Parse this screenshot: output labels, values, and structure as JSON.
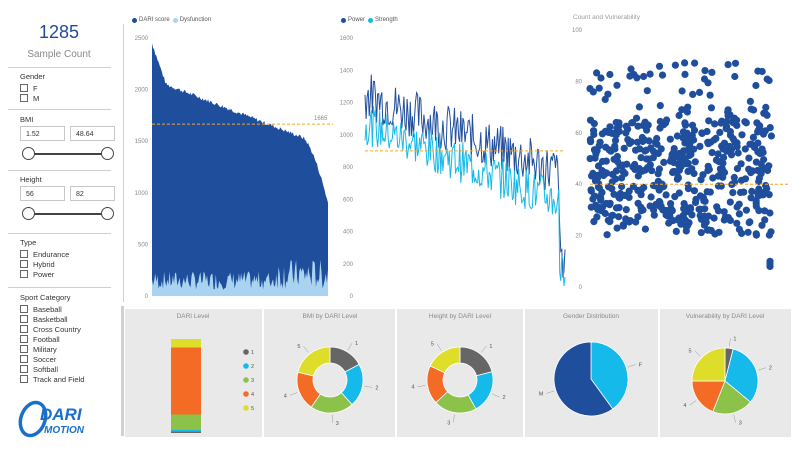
{
  "summary": {
    "count": "1285",
    "count_label": "Sample Count"
  },
  "filters": {
    "gender": {
      "title": "Gender",
      "options": [
        "F",
        "M"
      ]
    },
    "bmi": {
      "title": "BMI",
      "min": "1.52",
      "max": "48.64",
      "min_value": 1.52,
      "max_value": 48.64
    },
    "height": {
      "title": "Height",
      "min": "56",
      "max": "82",
      "min_value": 56,
      "max_value": 82
    },
    "type": {
      "title": "Type",
      "options": [
        "Endurance",
        "Hybrid",
        "Power"
      ]
    },
    "sport": {
      "title": "Sport Category",
      "options": [
        "Baseball",
        "Basketball",
        "Cross Country",
        "Football",
        "Military",
        "Soccer",
        "Softball",
        "Track and Field"
      ]
    }
  },
  "logo": {
    "line1": "DARI",
    "line2": "MOTION"
  },
  "colors": {
    "dark_blue": "#1f4e9d",
    "light_blue": "#a9d3ee",
    "cyan": "#15b9ea",
    "gray": "#666666",
    "green": "#8cc14a",
    "orange": "#f36b25",
    "yellow": "#dede2a",
    "ref_line": "#f5a623"
  },
  "chart_data": [
    {
      "type": "area",
      "series": [
        {
          "name": "DARI score"
        },
        {
          "name": "Dysfunction"
        }
      ],
      "ylim": [
        0,
        2500
      ],
      "yticks": [
        "0",
        "500",
        "1000",
        "1500",
        "2000",
        "2500"
      ],
      "reference_line": {
        "value": 1665,
        "label": "1665"
      },
      "description_values": {
        "dari_score_start": 2450,
        "dari_score_mid": 1700,
        "dari_score_end": 900,
        "dysfunction_max": 300
      }
    },
    {
      "type": "line",
      "series": [
        {
          "name": "Power"
        },
        {
          "name": "Strength"
        }
      ],
      "ylim": [
        0,
        1600
      ],
      "yticks": [
        "0",
        "200",
        "400",
        "600",
        "800",
        "1000",
        "1200",
        "1400",
        "1600"
      ],
      "reference_line": {
        "value": 900
      }
    },
    {
      "type": "scatter",
      "title": "Count and Vulnerability",
      "ylim": [
        0,
        100
      ],
      "yticks": [
        "0",
        "20",
        "40",
        "60",
        "80",
        "100"
      ],
      "reference_line": {
        "value": 40
      }
    },
    {
      "type": "bar",
      "title": "DARI Level",
      "categories": [
        "1",
        "2",
        "3",
        "4",
        "5"
      ],
      "values": [
        1,
        1,
        9,
        40,
        5
      ]
    },
    {
      "type": "pie",
      "title": "BMI by DARI Level",
      "categories": [
        "1",
        "2",
        "3",
        "4",
        "5"
      ],
      "values": [
        17,
        21,
        21,
        19,
        21
      ]
    },
    {
      "type": "pie",
      "title": "Height by DARI Level",
      "categories": [
        "1",
        "2",
        "3",
        "4",
        "5"
      ],
      "values": [
        21,
        21,
        21,
        19,
        18
      ]
    },
    {
      "type": "pie",
      "title": "Gender Distribution",
      "categories": [
        "F",
        "M"
      ],
      "values": [
        40,
        60
      ]
    },
    {
      "type": "pie",
      "title": "Vulnerability by DARI Level",
      "categories": [
        "1",
        "2",
        "3",
        "4",
        "5"
      ],
      "values": [
        4,
        32,
        20,
        19,
        25
      ]
    }
  ]
}
